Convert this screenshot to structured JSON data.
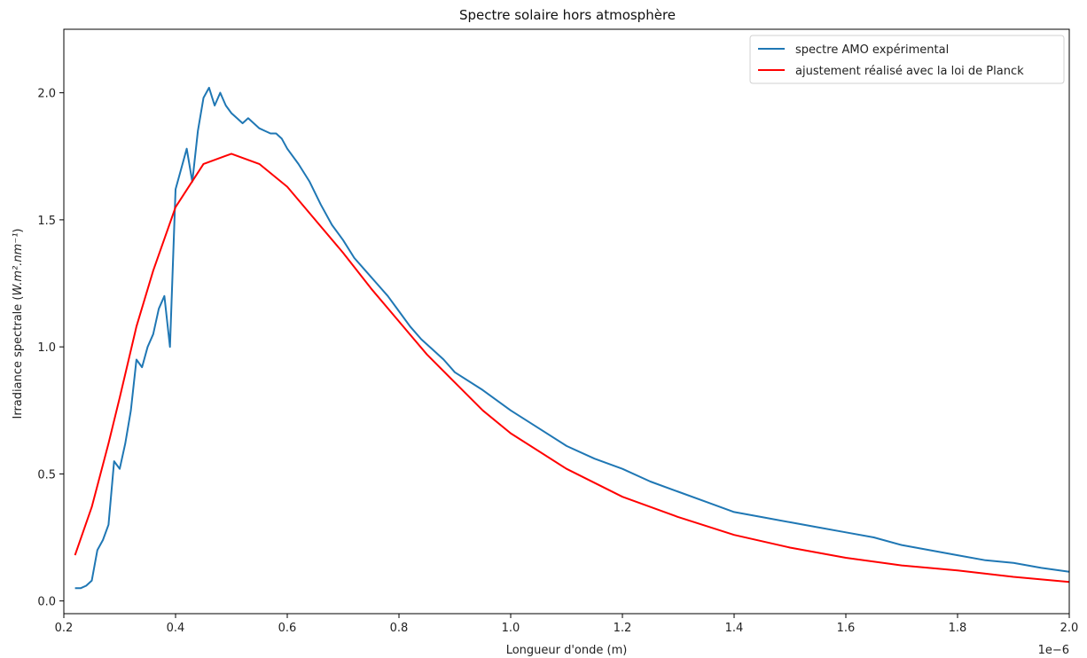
{
  "chart_data": {
    "type": "line",
    "title": "Spectre solaire hors atmosphère",
    "xlabel": "Longueur d'onde (m)",
    "ylabel_prefix": "Irradiance spectrale (",
    "ylabel_math": "W.m².nm⁻¹",
    "ylabel_suffix": ")",
    "x_offset_label": "1e−6",
    "xlim": [
      0.2,
      2.0
    ],
    "ylim": [
      -0.05,
      2.25
    ],
    "xticks": [
      0.2,
      0.4,
      0.6,
      0.8,
      1.0,
      1.2,
      1.4,
      1.6,
      1.8,
      2.0
    ],
    "xtick_labels": [
      "0.2",
      "0.4",
      "0.6",
      "0.8",
      "1.0",
      "1.2",
      "1.4",
      "1.6",
      "1.8",
      "2.0"
    ],
    "yticks": [
      0.0,
      0.5,
      1.0,
      1.5,
      2.0
    ],
    "ytick_labels": [
      "0.0",
      "0.5",
      "1.0",
      "1.5",
      "2.0"
    ],
    "grid": false,
    "legend": "top-right",
    "series": [
      {
        "name": "spectre AMO expérimental",
        "color": "#1f77b4",
        "x": [
          0.22,
          0.23,
          0.24,
          0.25,
          0.26,
          0.27,
          0.28,
          0.29,
          0.3,
          0.31,
          0.32,
          0.33,
          0.34,
          0.35,
          0.36,
          0.37,
          0.38,
          0.39,
          0.4,
          0.41,
          0.42,
          0.43,
          0.44,
          0.45,
          0.46,
          0.47,
          0.48,
          0.49,
          0.5,
          0.51,
          0.52,
          0.53,
          0.54,
          0.55,
          0.56,
          0.57,
          0.58,
          0.59,
          0.6,
          0.62,
          0.64,
          0.66,
          0.68,
          0.7,
          0.72,
          0.74,
          0.76,
          0.78,
          0.8,
          0.82,
          0.84,
          0.86,
          0.88,
          0.9,
          0.95,
          1.0,
          1.05,
          1.1,
          1.15,
          1.2,
          1.25,
          1.3,
          1.35,
          1.4,
          1.45,
          1.5,
          1.55,
          1.6,
          1.65,
          1.7,
          1.75,
          1.8,
          1.85,
          1.9,
          1.95,
          2.0
        ],
        "y": [
          0.05,
          0.05,
          0.06,
          0.08,
          0.2,
          0.24,
          0.3,
          0.55,
          0.52,
          0.62,
          0.75,
          0.95,
          0.92,
          1.0,
          1.05,
          1.15,
          1.2,
          1.0,
          1.62,
          1.7,
          1.78,
          1.65,
          1.85,
          1.98,
          2.02,
          1.95,
          2.0,
          1.95,
          1.92,
          1.9,
          1.88,
          1.9,
          1.88,
          1.86,
          1.85,
          1.84,
          1.84,
          1.82,
          1.78,
          1.72,
          1.65,
          1.56,
          1.48,
          1.42,
          1.35,
          1.3,
          1.25,
          1.2,
          1.14,
          1.08,
          1.03,
          0.99,
          0.95,
          0.9,
          0.83,
          0.75,
          0.68,
          0.61,
          0.56,
          0.52,
          0.47,
          0.43,
          0.39,
          0.35,
          0.33,
          0.31,
          0.29,
          0.27,
          0.25,
          0.22,
          0.2,
          0.18,
          0.16,
          0.15,
          0.13,
          0.115
        ]
      },
      {
        "name": "ajustement réalisé avec la loi de Planck",
        "color": "#ff0000",
        "x": [
          0.22,
          0.25,
          0.28,
          0.3,
          0.33,
          0.36,
          0.4,
          0.45,
          0.5,
          0.55,
          0.6,
          0.65,
          0.7,
          0.75,
          0.8,
          0.85,
          0.9,
          0.95,
          1.0,
          1.1,
          1.2,
          1.3,
          1.4,
          1.5,
          1.6,
          1.7,
          1.8,
          1.9,
          2.0
        ],
        "y": [
          0.18,
          0.37,
          0.62,
          0.8,
          1.08,
          1.3,
          1.55,
          1.72,
          1.76,
          1.72,
          1.63,
          1.5,
          1.37,
          1.23,
          1.1,
          0.97,
          0.86,
          0.75,
          0.66,
          0.52,
          0.41,
          0.33,
          0.26,
          0.21,
          0.17,
          0.14,
          0.12,
          0.095,
          0.075
        ]
      }
    ]
  }
}
